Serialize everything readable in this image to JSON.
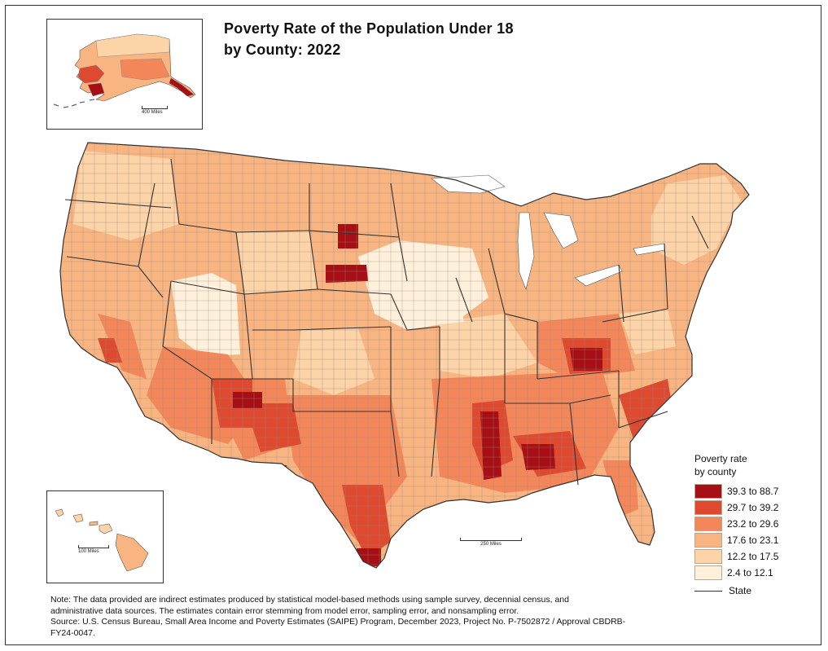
{
  "title": {
    "line1": "Poverty Rate of the Population Under 18",
    "line2": "by County: 2022"
  },
  "legend": {
    "title_line1": "Poverty rate",
    "title_line2": "by county",
    "classes": [
      {
        "label": "39.3 to 88.7",
        "color": "#a50f15"
      },
      {
        "label": "29.7 to 39.2",
        "color": "#de4a2f"
      },
      {
        "label": "23.2 to 29.6",
        "color": "#f4875a"
      },
      {
        "label": "17.6 to 23.1",
        "color": "#f8b582"
      },
      {
        "label": "12.2 to 17.5",
        "color": "#fcd4a8"
      },
      {
        "label": "2.4 to 12.1",
        "color": "#fff0dc"
      }
    ],
    "state_label": "State"
  },
  "scales": {
    "alaska": "400 Miles",
    "hawaii": "100 Miles",
    "main": "250 Miles"
  },
  "notes": {
    "note_line1": "Note: The data provided are indirect estimates produced by statistical model-based methods using sample survey, decennial census, and",
    "note_line2": "administrative data sources. The estimates contain error stemming from model error, sampling error, and nonsampling error.",
    "source_line1": "Source: U.S. Census Bureau, Small Area Income and Poverty Estimates (SAIPE) Program, December 2023, Project No. P-7502872 / Approval CBDRB-",
    "source_line2": "FY24-0047."
  }
}
